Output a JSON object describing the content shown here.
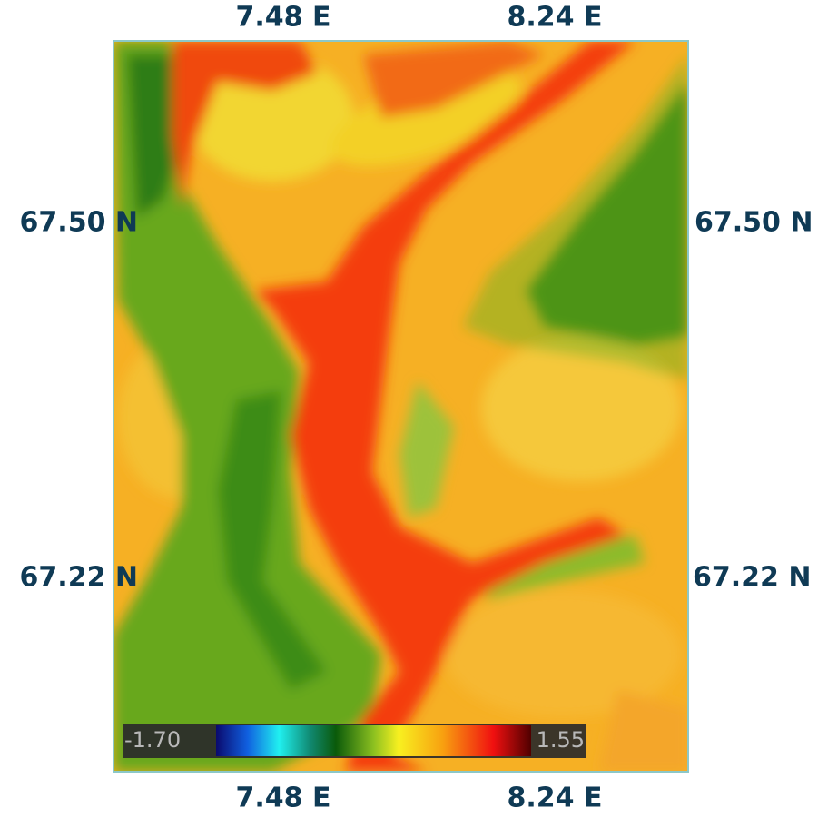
{
  "lon_labels_top": [
    "7.48 E",
    "8.24 E"
  ],
  "lon_labels_bottom": [
    "7.48 E",
    "8.24 E"
  ],
  "lat_labels_left": [
    "67.50 N",
    "67.22 N"
  ],
  "lat_labels_right": [
    "67.50 N",
    "67.22 N"
  ],
  "colorbar": {
    "min_label": "-1.70",
    "max_label": "1.55"
  }
}
